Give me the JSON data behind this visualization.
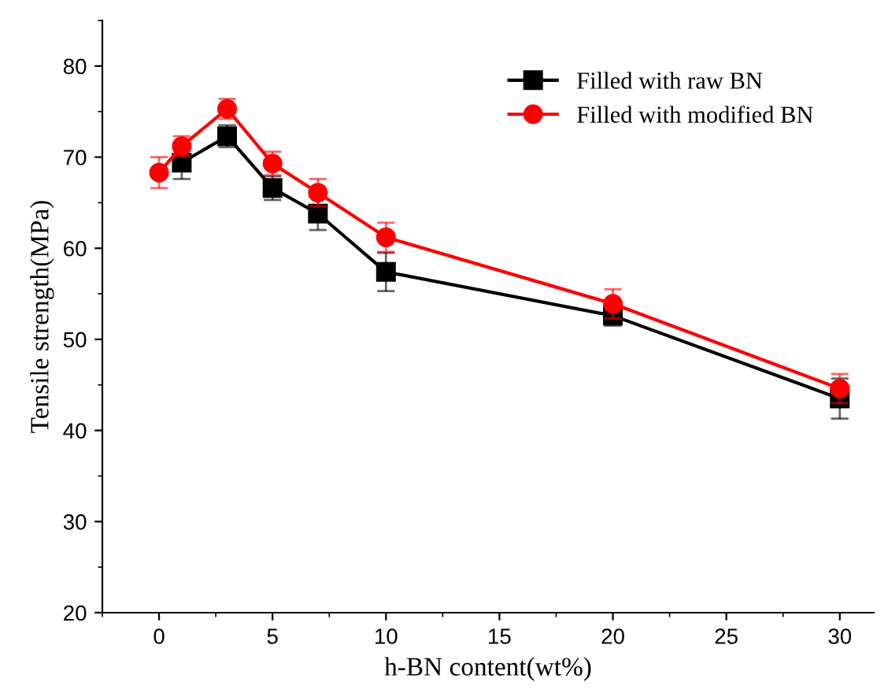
{
  "chart_data": {
    "type": "line",
    "xlabel": "h-BN content(wt%)",
    "ylabel": "Tensile strength(MPa)",
    "x": [
      0,
      1,
      3,
      5,
      7,
      10,
      20,
      30
    ],
    "series": [
      {
        "name": "Filled with raw BN",
        "color": "#000000",
        "marker": "square",
        "values": [
          null,
          69.4,
          72.3,
          66.6,
          63.8,
          57.4,
          52.6,
          43.5
        ],
        "errors": [
          null,
          1.8,
          1.2,
          1.3,
          1.8,
          2.1,
          1.1,
          2.2
        ]
      },
      {
        "name": "Filled with modified BN",
        "color": "#ff0000",
        "marker": "circle",
        "values": [
          68.3,
          71.2,
          75.3,
          69.3,
          66.1,
          61.2,
          53.9,
          44.6
        ],
        "errors": [
          1.7,
          1.1,
          1.1,
          1.3,
          1.5,
          1.6,
          1.6,
          1.6
        ]
      }
    ],
    "xlim": [
      -2.5,
      31.5
    ],
    "ylim": [
      20,
      85
    ],
    "xticks": [
      0,
      5,
      10,
      15,
      20,
      25,
      30
    ],
    "yticks": [
      20,
      30,
      40,
      50,
      60,
      70,
      80
    ],
    "grid": false,
    "legend": "top right",
    "line_style": "solid"
  }
}
